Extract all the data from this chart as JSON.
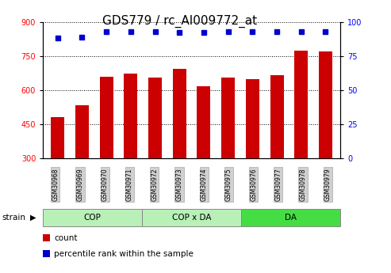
{
  "title": "GDS779 / rc_AI009772_at",
  "samples": [
    "GSM30968",
    "GSM30969",
    "GSM30970",
    "GSM30971",
    "GSM30972",
    "GSM30973",
    "GSM30974",
    "GSM30975",
    "GSM30976",
    "GSM30977",
    "GSM30978",
    "GSM30979"
  ],
  "counts": [
    480,
    535,
    660,
    672,
    655,
    695,
    617,
    655,
    648,
    665,
    775,
    770
  ],
  "percentiles": [
    88,
    89,
    93,
    93,
    93,
    92,
    92,
    93,
    93,
    93,
    93,
    93
  ],
  "bar_color": "#cc0000",
  "dot_color": "#0000cc",
  "ylim_left": [
    300,
    900
  ],
  "ylim_right": [
    0,
    100
  ],
  "yticks_left": [
    300,
    450,
    600,
    750,
    900
  ],
  "yticks_right": [
    0,
    25,
    50,
    75,
    100
  ],
  "groups": [
    {
      "label": "COP",
      "start": 0,
      "end": 4,
      "color": "#b8f0b8"
    },
    {
      "label": "COP x DA",
      "start": 4,
      "end": 8,
      "color": "#b8f0b8"
    },
    {
      "label": "DA",
      "start": 8,
      "end": 12,
      "color": "#44dd44"
    }
  ],
  "xlabel_strain": "strain",
  "legend_count": "count",
  "legend_percentile": "percentile rank within the sample",
  "bar_color_legend": "#cc0000",
  "dot_color_legend": "#0000cc",
  "title_fontsize": 11,
  "tick_fontsize": 7,
  "label_fontsize": 8
}
